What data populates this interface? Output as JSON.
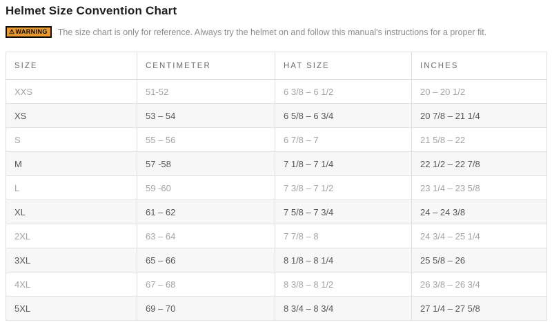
{
  "page": {
    "title": "Helmet Size Convention Chart"
  },
  "warning": {
    "badge_icon": "⚠",
    "badge_label": "WARNING",
    "badge_bg_color": "#e8992c",
    "text": "The size chart is only for reference. Always try the helmet on and follow this manual's instructions for a proper fit."
  },
  "table": {
    "columns": [
      "SIZE",
      "CENTIMETER",
      "HAT SIZE",
      "INCHES"
    ],
    "rows": [
      [
        "XXS",
        "51-52",
        "6 3/8 – 6 1/2",
        "20 – 20 1/2"
      ],
      [
        "XS",
        "53 – 54",
        "6 5/8 – 6 3/4",
        "20 7/8 – 21 1/4"
      ],
      [
        "S",
        "55 – 56",
        "6 7/8 – 7",
        "21 5/8 – 22"
      ],
      [
        "M",
        "57 -58",
        "7 1/8 – 7 1/4",
        "22 1/2 – 22 7/8"
      ],
      [
        "L",
        "59 -60",
        "7 3/8 – 7 1/2",
        "23 1/4 – 23 5/8"
      ],
      [
        "XL",
        "61 – 62",
        "7 5/8 – 7 3/4",
        "24 – 24 3/8"
      ],
      [
        "2XL",
        "63 – 64",
        "7 7/8 – 8",
        "24 3/4 – 25 1/4"
      ],
      [
        "3XL",
        "65 – 66",
        "8 1/8 – 8 1/4",
        "25 5/8 – 26"
      ],
      [
        "4XL",
        "67 – 68",
        "8 3/8 – 8 1/2",
        "26 3/8 – 26 3/4"
      ],
      [
        "5XL",
        "69 – 70",
        "8 3/4 – 8 3/4",
        "27 1/4 – 27 5/8"
      ]
    ]
  },
  "colors": {
    "title_text": "#1d1d1d",
    "warning_text": "#8c8c8c",
    "table_border": "#dedede",
    "header_text": "#6b6b6b",
    "odd_row_text": "#a3a3a3",
    "even_row_text": "#555555",
    "even_row_bg": "#f7f7f7"
  }
}
